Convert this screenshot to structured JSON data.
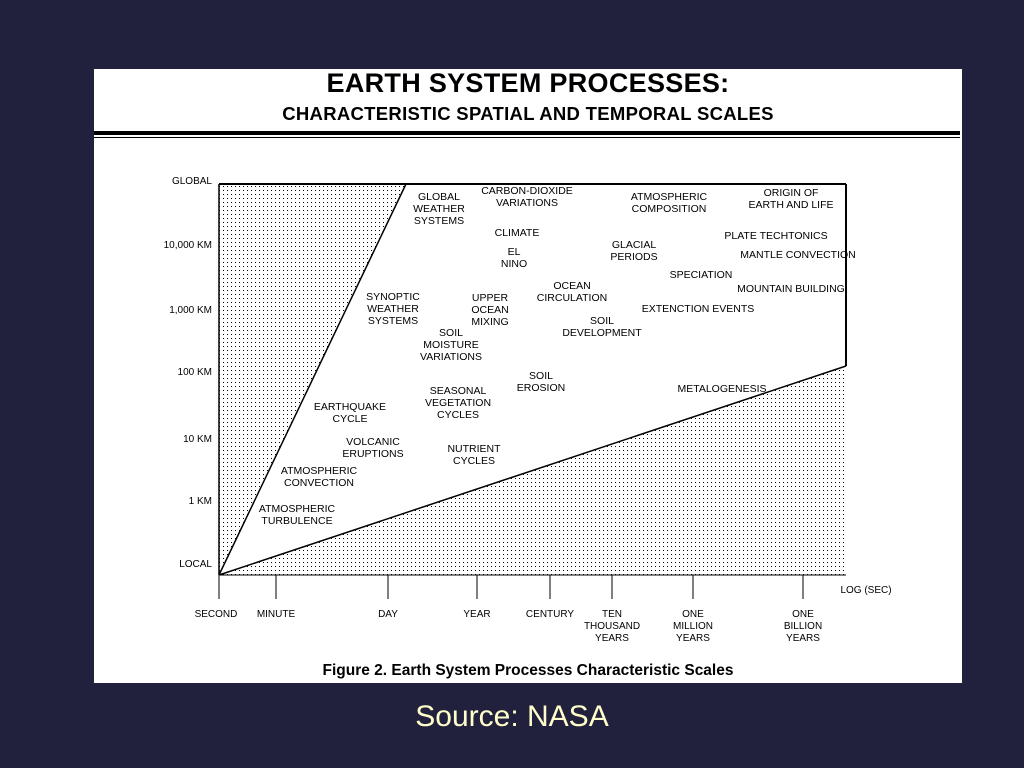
{
  "slide": {
    "title": "EARTH SYSTEM PROCESSES:",
    "subtitle": "CHARACTERISTIC SPATIAL AND TEMPORAL SCALES",
    "caption": "Figure 2.  Earth System Processes Characteristic Scales",
    "source": "Source: NASA"
  },
  "colors": {
    "background": "#21213d",
    "panel": "#ffffff",
    "source_text": "#ffffcc",
    "ink": "#000000"
  },
  "y_axis": {
    "ticks": [
      "GLOBAL",
      "10,000 KM",
      "1,000 KM",
      "100 KM",
      "10 KM",
      "1 KM",
      "LOCAL"
    ]
  },
  "x_axis": {
    "unit_label": "LOG (SEC)",
    "ticks": [
      [
        "SECOND"
      ],
      [
        "MINUTE"
      ],
      [
        "DAY"
      ],
      [
        "YEAR"
      ],
      [
        "CENTURY"
      ],
      [
        "TEN",
        "THOUSAND",
        "YEARS"
      ],
      [
        "ONE",
        "MILLION",
        "YEARS"
      ],
      [
        "ONE",
        "BILLION",
        "YEARS"
      ]
    ]
  },
  "processes": [
    [
      "GLOBAL",
      "WEATHER",
      "SYSTEMS"
    ],
    [
      "CARBON-DIOXIDE",
      "VARIATIONS"
    ],
    [
      "ATMOSPHERIC",
      "COMPOSITION"
    ],
    [
      "ORIGIN OF",
      "EARTH AND LIFE"
    ],
    [
      "CLIMATE"
    ],
    [
      "EL",
      "NINO"
    ],
    [
      "GLACIAL",
      "PERIODS"
    ],
    [
      "PLATE TECHTONICS"
    ],
    [
      "MANTLE CONVECTION"
    ],
    [
      "SPECIATION"
    ],
    [
      "OCEAN",
      "CIRCULATION"
    ],
    [
      "MOUNTAIN BUILDING"
    ],
    [
      "SYNOPTIC",
      "WEATHER",
      "SYSTEMS"
    ],
    [
      "UPPER",
      "OCEAN",
      "MIXING"
    ],
    [
      "EXTENCTION EVENTS"
    ],
    [
      "SOIL",
      "DEVELOPMENT"
    ],
    [
      "SOIL",
      "MOISTURE",
      "VARIATIONS"
    ],
    [
      "SOIL",
      "EROSION"
    ],
    [
      "METALOGENESIS"
    ],
    [
      "SEASONAL",
      "VEGETATION",
      "CYCLES"
    ],
    [
      "EARTHQUAKE",
      "CYCLE"
    ],
    [
      "VOLCANIC",
      "ERUPTIONS"
    ],
    [
      "NUTRIENT",
      "CYCLES"
    ],
    [
      "ATMOSPHERIC",
      "CONVECTION"
    ],
    [
      "ATMOSPHERIC",
      "TURBULENCE"
    ]
  ]
}
